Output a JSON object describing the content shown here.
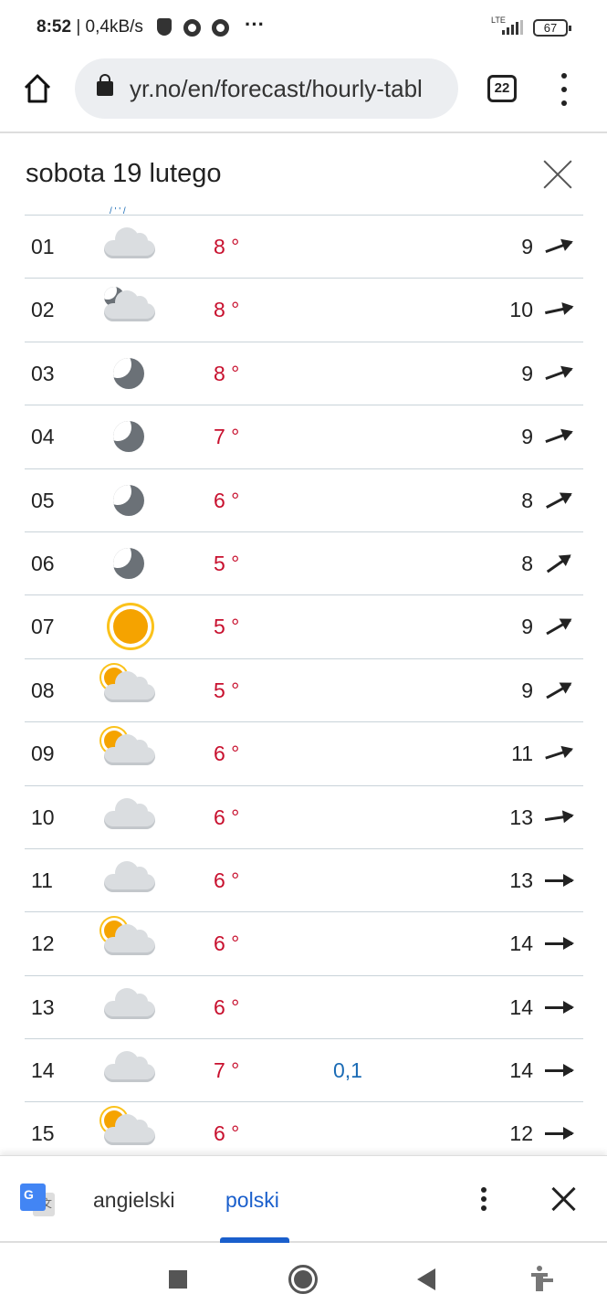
{
  "status_bar": {
    "time": "8:52",
    "speed": "| 0,4kB/s",
    "network": "LTE",
    "battery": "67"
  },
  "browser": {
    "url": "yr.no/en/forecast/hourly-tabl",
    "tab_count": "22"
  },
  "panel": {
    "title": "sobota 19 lutego"
  },
  "rows": [
    {
      "hour": "01",
      "icon": "cloudy",
      "temp": "8 °",
      "precip": "",
      "wind": "9",
      "wind_arrow_deg": -20
    },
    {
      "hour": "02",
      "icon": "partly-cloudy-night",
      "temp": "8 °",
      "precip": "",
      "wind": "10",
      "wind_arrow_deg": -12
    },
    {
      "hour": "03",
      "icon": "clear-night",
      "temp": "8 °",
      "precip": "",
      "wind": "9",
      "wind_arrow_deg": -20
    },
    {
      "hour": "04",
      "icon": "clear-night",
      "temp": "7 °",
      "precip": "",
      "wind": "9",
      "wind_arrow_deg": -20
    },
    {
      "hour": "05",
      "icon": "clear-night",
      "temp": "6 °",
      "precip": "",
      "wind": "8",
      "wind_arrow_deg": -28
    },
    {
      "hour": "06",
      "icon": "clear-night",
      "temp": "5 °",
      "precip": "",
      "wind": "8",
      "wind_arrow_deg": -35
    },
    {
      "hour": "07",
      "icon": "clear-sky-day",
      "temp": "5 °",
      "precip": "",
      "wind": "9",
      "wind_arrow_deg": -30
    },
    {
      "hour": "08",
      "icon": "partly-cloudy-day",
      "temp": "5 °",
      "precip": "",
      "wind": "9",
      "wind_arrow_deg": -30
    },
    {
      "hour": "09",
      "icon": "partly-cloudy-day",
      "temp": "6 °",
      "precip": "",
      "wind": "11",
      "wind_arrow_deg": -18
    },
    {
      "hour": "10",
      "icon": "cloudy",
      "temp": "6 °",
      "precip": "",
      "wind": "13",
      "wind_arrow_deg": -8
    },
    {
      "hour": "11",
      "icon": "cloudy",
      "temp": "6 °",
      "precip": "",
      "wind": "13",
      "wind_arrow_deg": 0
    },
    {
      "hour": "12",
      "icon": "partly-cloudy-day",
      "temp": "6 °",
      "precip": "",
      "wind": "14",
      "wind_arrow_deg": 0
    },
    {
      "hour": "13",
      "icon": "cloudy",
      "temp": "6 °",
      "precip": "",
      "wind": "14",
      "wind_arrow_deg": 0
    },
    {
      "hour": "14",
      "icon": "cloudy",
      "temp": "7 °",
      "precip": "0,1",
      "wind": "14",
      "wind_arrow_deg": 0
    },
    {
      "hour": "15",
      "icon": "partly-cloudy-day",
      "temp": "6 °",
      "precip": "",
      "wind": "12",
      "wind_arrow_deg": 0
    }
  ],
  "translate_bar": {
    "source_lang": "angielski",
    "target_lang": "polski",
    "active": "polski"
  },
  "colors": {
    "temp": "#c8102e",
    "precip": "#1a6bb5",
    "accent": "#1a5fcc"
  }
}
